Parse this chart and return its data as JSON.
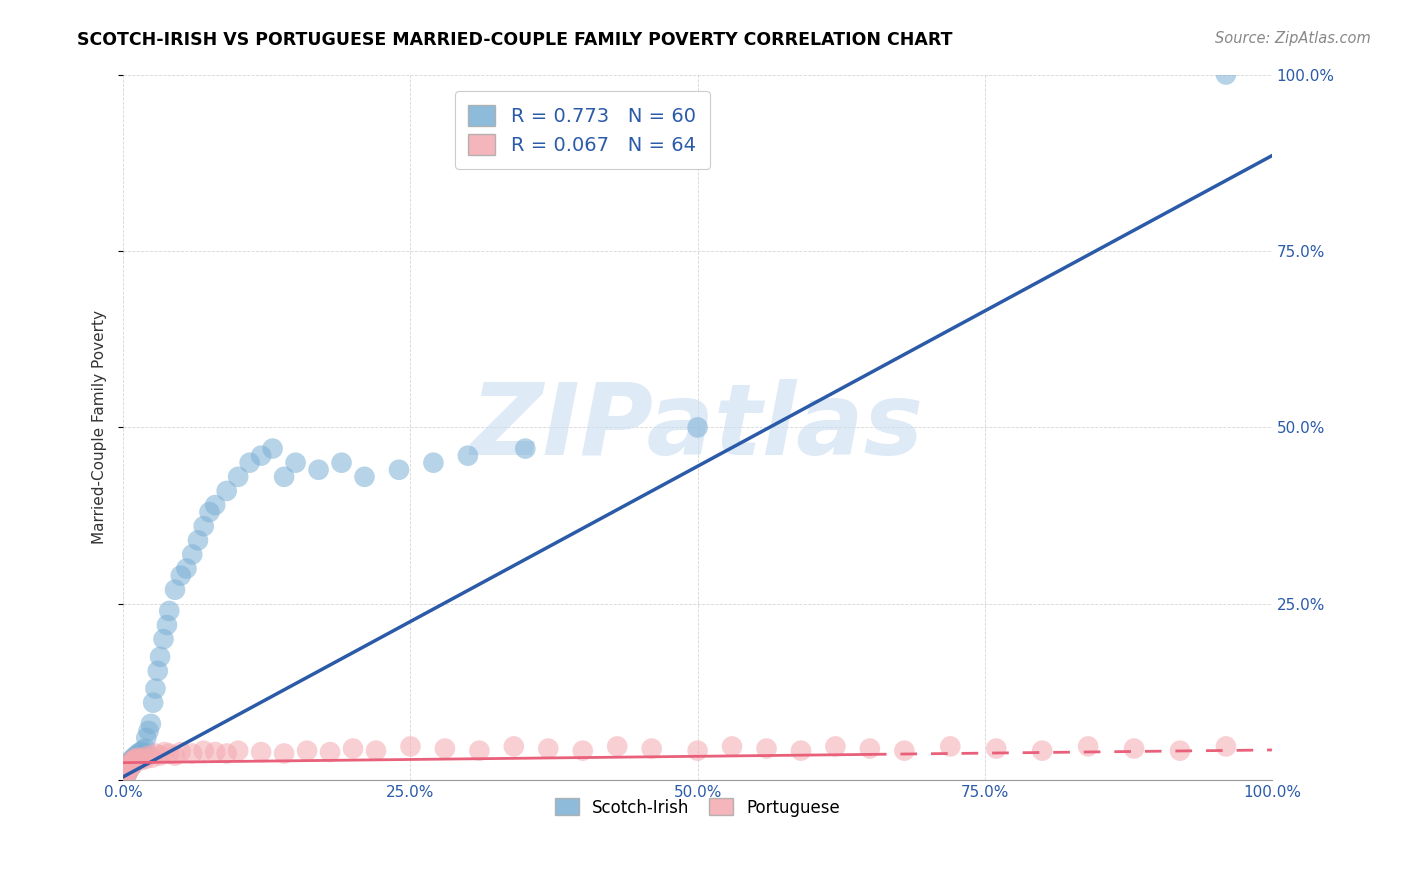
{
  "title": "SCOTCH-IRISH VS PORTUGUESE MARRIED-COUPLE FAMILY POVERTY CORRELATION CHART",
  "source": "Source: ZipAtlas.com",
  "ylabel": "Married-Couple Family Poverty",
  "scotch_irish_R": 0.773,
  "scotch_irish_N": 60,
  "portuguese_R": 0.067,
  "portuguese_N": 64,
  "scotch_irish_color": "#7BAFD4",
  "portuguese_color": "#F4A9B0",
  "scotch_irish_line_color": "#2B5BA8",
  "portuguese_line_color": "#E8607A",
  "watermark_color": "#C8DCF0",
  "xlim": [
    0,
    1
  ],
  "ylim": [
    0,
    1
  ],
  "scotch_irish_x": [
    0.001,
    0.002,
    0.003,
    0.003,
    0.004,
    0.004,
    0.005,
    0.005,
    0.006,
    0.006,
    0.007,
    0.007,
    0.008,
    0.008,
    0.009,
    0.009,
    0.01,
    0.011,
    0.012,
    0.013,
    0.014,
    0.015,
    0.016,
    0.017,
    0.018,
    0.019,
    0.02,
    0.022,
    0.024,
    0.026,
    0.028,
    0.03,
    0.032,
    0.035,
    0.038,
    0.04,
    0.045,
    0.05,
    0.055,
    0.06,
    0.065,
    0.07,
    0.075,
    0.08,
    0.09,
    0.1,
    0.11,
    0.12,
    0.13,
    0.14,
    0.15,
    0.17,
    0.19,
    0.21,
    0.24,
    0.27,
    0.3,
    0.35,
    0.5,
    0.96
  ],
  "scotch_irish_y": [
    0.005,
    0.01,
    0.008,
    0.015,
    0.012,
    0.018,
    0.015,
    0.022,
    0.018,
    0.025,
    0.02,
    0.028,
    0.022,
    0.03,
    0.025,
    0.032,
    0.028,
    0.035,
    0.03,
    0.038,
    0.032,
    0.04,
    0.035,
    0.042,
    0.038,
    0.045,
    0.06,
    0.07,
    0.08,
    0.11,
    0.13,
    0.155,
    0.175,
    0.2,
    0.22,
    0.24,
    0.27,
    0.29,
    0.3,
    0.32,
    0.34,
    0.36,
    0.38,
    0.39,
    0.41,
    0.43,
    0.45,
    0.46,
    0.47,
    0.43,
    0.45,
    0.44,
    0.45,
    0.43,
    0.44,
    0.45,
    0.46,
    0.47,
    0.5,
    1.0
  ],
  "portuguese_x": [
    0.001,
    0.002,
    0.002,
    0.003,
    0.003,
    0.004,
    0.004,
    0.005,
    0.005,
    0.006,
    0.006,
    0.007,
    0.007,
    0.008,
    0.008,
    0.009,
    0.01,
    0.011,
    0.012,
    0.013,
    0.015,
    0.017,
    0.019,
    0.022,
    0.025,
    0.028,
    0.032,
    0.036,
    0.04,
    0.045,
    0.05,
    0.06,
    0.07,
    0.08,
    0.09,
    0.1,
    0.12,
    0.14,
    0.16,
    0.18,
    0.2,
    0.22,
    0.25,
    0.28,
    0.31,
    0.34,
    0.37,
    0.4,
    0.43,
    0.46,
    0.5,
    0.53,
    0.56,
    0.59,
    0.62,
    0.65,
    0.68,
    0.72,
    0.76,
    0.8,
    0.84,
    0.88,
    0.92,
    0.96
  ],
  "portuguese_y": [
    0.005,
    0.008,
    0.012,
    0.01,
    0.015,
    0.012,
    0.018,
    0.015,
    0.02,
    0.018,
    0.022,
    0.02,
    0.025,
    0.022,
    0.028,
    0.025,
    0.03,
    0.028,
    0.032,
    0.03,
    0.028,
    0.032,
    0.03,
    0.035,
    0.032,
    0.038,
    0.035,
    0.04,
    0.038,
    0.035,
    0.04,
    0.038,
    0.042,
    0.04,
    0.038,
    0.042,
    0.04,
    0.038,
    0.042,
    0.04,
    0.045,
    0.042,
    0.048,
    0.045,
    0.042,
    0.048,
    0.045,
    0.042,
    0.048,
    0.045,
    0.042,
    0.048,
    0.045,
    0.042,
    0.048,
    0.045,
    0.042,
    0.048,
    0.045,
    0.042,
    0.048,
    0.045,
    0.042,
    0.048
  ]
}
